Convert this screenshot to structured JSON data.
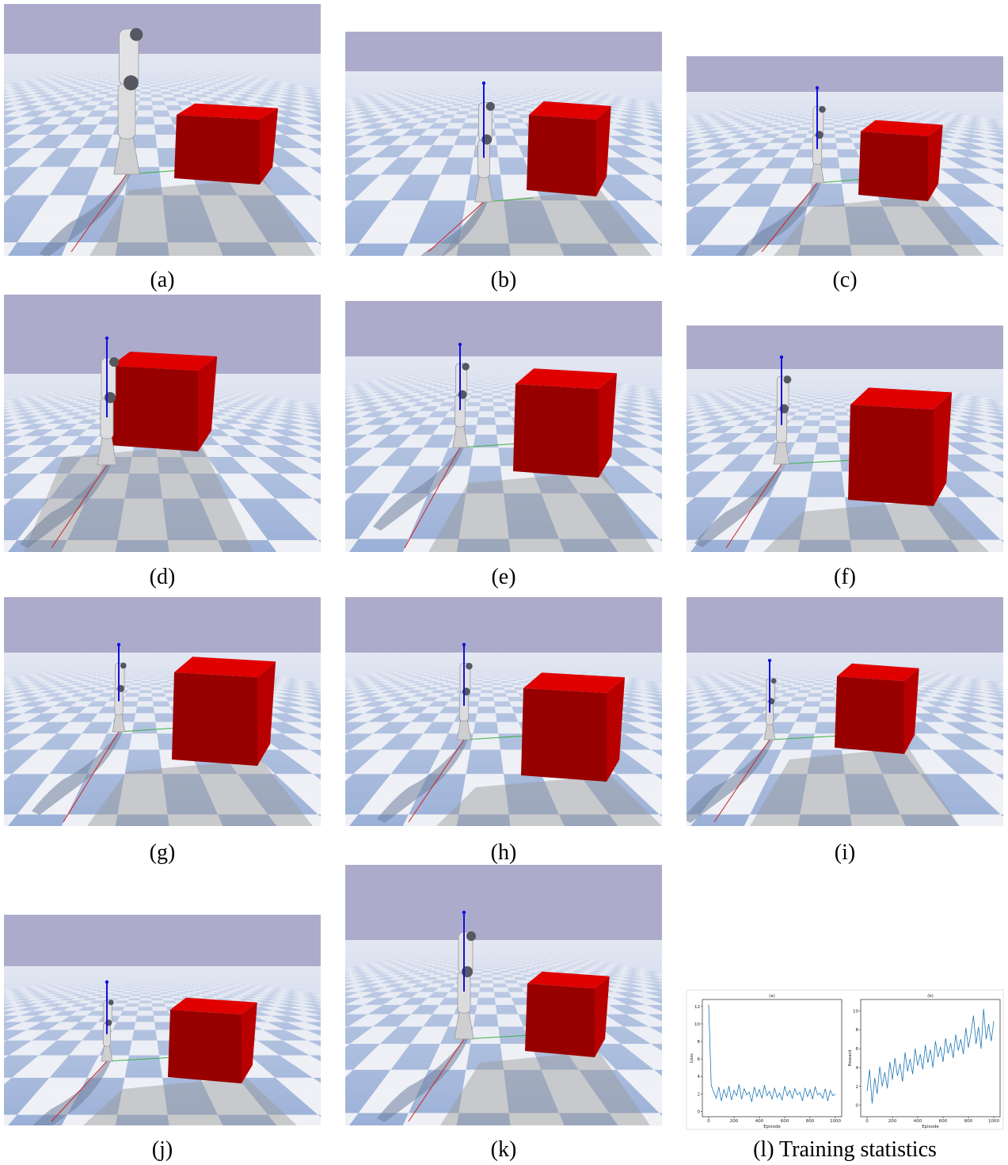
{
  "figure": {
    "panels": [
      {
        "caption": "(a)"
      },
      {
        "caption": "(b)"
      },
      {
        "caption": "(c)"
      },
      {
        "caption": "(d)"
      },
      {
        "caption": "(e)"
      },
      {
        "caption": "(f)"
      },
      {
        "caption": "(g)"
      },
      {
        "caption": "(h)"
      },
      {
        "caption": "(i)"
      },
      {
        "caption": "(j)"
      },
      {
        "caption": "(k)"
      },
      {
        "caption": "(l) Training statistics"
      }
    ]
  },
  "chart_data": [
    {
      "type": "line",
      "title": "(a)",
      "xlabel": "Episode",
      "ylabel": "Loss",
      "color": "#1f77b4",
      "x": [
        0,
        20,
        40,
        60,
        80,
        100,
        120,
        140,
        160,
        180,
        200,
        220,
        240,
        260,
        280,
        300,
        320,
        340,
        360,
        380,
        400,
        420,
        440,
        460,
        480,
        500,
        520,
        540,
        560,
        580,
        600,
        620,
        640,
        660,
        680,
        700,
        720,
        740,
        760,
        780,
        800,
        820,
        840,
        860,
        880,
        900,
        920,
        940,
        960,
        980,
        1000
      ],
      "values": [
        12.2,
        3.0,
        2.2,
        1.5,
        2.8,
        1.2,
        2.5,
        1.6,
        2.9,
        1.3,
        2.4,
        1.8,
        3.1,
        1.4,
        2.6,
        1.9,
        2.2,
        1.1,
        2.8,
        1.7,
        2.5,
        1.5,
        3.0,
        1.8,
        2.3,
        1.4,
        2.7,
        1.6,
        2.1,
        1.3,
        2.9,
        1.8,
        2.4,
        1.5,
        2.6,
        1.9,
        2.2,
        1.2,
        2.7,
        1.7,
        2.5,
        1.4,
        2.8,
        1.9,
        2.1,
        1.5,
        2.6,
        1.2,
        2.4,
        1.8,
        2.0
      ],
      "xlim": [
        -50,
        1050
      ],
      "ylim": [
        -0.6,
        12.8
      ],
      "xticks": [
        0,
        200,
        400,
        600,
        800,
        1000
      ],
      "yticks": [
        0,
        2,
        4,
        6,
        8,
        10,
        12
      ]
    },
    {
      "type": "line",
      "title": "(b)",
      "xlabel": "Episode",
      "ylabel": "Reward",
      "color": "#1f77b4",
      "x": [
        0,
        20,
        40,
        60,
        80,
        100,
        120,
        140,
        160,
        180,
        200,
        220,
        240,
        260,
        280,
        300,
        320,
        340,
        360,
        380,
        400,
        420,
        440,
        460,
        480,
        500,
        520,
        540,
        560,
        580,
        600,
        620,
        640,
        660,
        680,
        700,
        720,
        740,
        760,
        780,
        800,
        820,
        840,
        860,
        880,
        900,
        920,
        940,
        960,
        980,
        1000
      ],
      "values": [
        1.5,
        3.8,
        0.2,
        2.9,
        1.2,
        4.1,
        2.0,
        3.5,
        1.8,
        4.6,
        2.7,
        5.0,
        3.1,
        4.4,
        2.5,
        5.6,
        3.6,
        4.9,
        3.3,
        6.0,
        4.2,
        5.4,
        3.8,
        6.4,
        4.5,
        5.9,
        4.0,
        6.8,
        5.1,
        6.2,
        4.6,
        7.1,
        5.5,
        6.6,
        5.0,
        7.5,
        5.8,
        7.0,
        5.4,
        8.2,
        6.1,
        7.6,
        9.5,
        6.5,
        8.3,
        6.0,
        10.2,
        7.0,
        8.6,
        6.8,
        8.9
      ],
      "xlim": [
        -50,
        1050
      ],
      "ylim": [
        -1.2,
        11.2
      ],
      "xticks": [
        0,
        200,
        400,
        600,
        800,
        1000
      ],
      "yticks": [
        0,
        2,
        4,
        6,
        8,
        10
      ]
    }
  ]
}
